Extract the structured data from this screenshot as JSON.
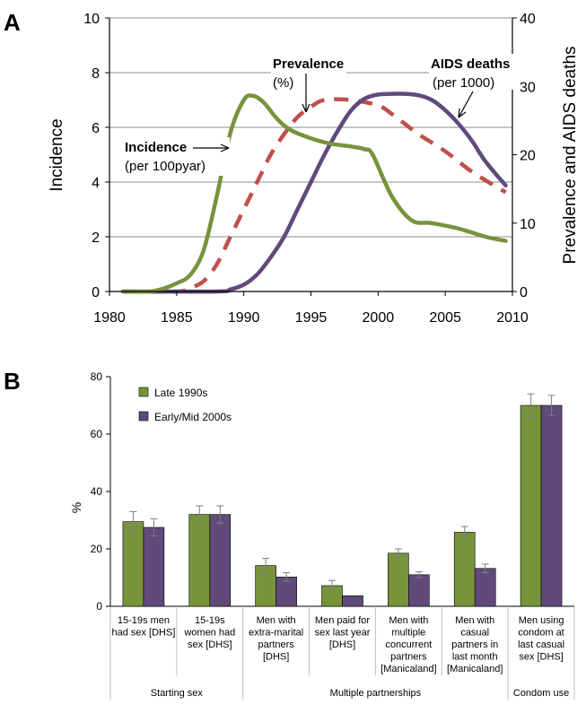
{
  "panels": {
    "a_label": "A",
    "b_label": "B"
  },
  "chart_data": [
    {
      "type": "line",
      "panel": "A",
      "xlim": [
        1980,
        2010
      ],
      "xticks": [
        "1980",
        "1985",
        "1990",
        "1995",
        "2000",
        "2005",
        "2010"
      ],
      "ylabel_left": "Incidence",
      "ylim_left": [
        0,
        10
      ],
      "yticks_left": [
        "0",
        "2",
        "4",
        "6",
        "8",
        "10"
      ],
      "ylabel_right": "Prevalence and AIDS deaths",
      "ylim_right": [
        0,
        40
      ],
      "yticks_right": [
        "0",
        "10",
        "20",
        "30",
        "40"
      ],
      "grid": true,
      "series": [
        {
          "name": "Incidence",
          "note": "(per 100pyar)",
          "axis": "left",
          "color": "#77933c",
          "style": "solid",
          "x": [
            1981,
            1983,
            1984,
            1985,
            1986,
            1987,
            1988,
            1989,
            1990,
            1990.7,
            1991.5,
            1992.5,
            1993.5,
            1995,
            1996.5,
            1998,
            1999,
            1999.6,
            2001,
            2002.5,
            2004,
            2006,
            2008,
            2009.5
          ],
          "y": [
            0,
            0,
            0.1,
            0.3,
            0.6,
            1.5,
            3.5,
            5.8,
            7.0,
            7.15,
            6.9,
            6.3,
            5.9,
            5.6,
            5.4,
            5.3,
            5.2,
            5.0,
            3.5,
            2.6,
            2.5,
            2.3,
            2.0,
            1.85
          ]
        },
        {
          "name": "Prevalence",
          "note": "(%)",
          "axis": "right",
          "color": "#c0504d",
          "style": "dashed",
          "x": [
            1981,
            1985,
            1986,
            1987,
            1988,
            1989,
            1990,
            1991,
            1992,
            1993,
            1994,
            1995,
            1996,
            1998,
            2000,
            2001,
            2002,
            2003,
            2005,
            2007,
            2009.5
          ],
          "y": [
            0,
            0,
            0.5,
            1.5,
            4,
            8,
            12,
            16,
            20,
            23,
            25.5,
            27,
            28,
            28,
            27.2,
            26,
            24.5,
            23,
            20.5,
            17.5,
            14.5
          ]
        },
        {
          "name": "AIDS deaths",
          "note": "(per 1000)",
          "axis": "right",
          "color": "#604a7b",
          "style": "solid",
          "x": [
            1981,
            1988,
            1989,
            1990,
            1991,
            1992,
            1993,
            1994,
            1995,
            1996,
            1997,
            1998,
            1999,
            2000,
            2001,
            2002,
            2003,
            2004,
            2005,
            2006,
            2007,
            2008,
            2009.5
          ],
          "y": [
            0,
            0,
            0.3,
            1,
            2.5,
            5,
            8,
            12,
            16,
            20,
            23.5,
            26.5,
            28.2,
            28.8,
            28.9,
            28.9,
            28.7,
            28,
            26.5,
            24.5,
            22,
            19,
            15.5
          ]
        }
      ]
    },
    {
      "type": "bar",
      "panel": "B",
      "ylabel": "%",
      "ylim": [
        0,
        80
      ],
      "yticks": [
        "0",
        "20",
        "40",
        "60",
        "80"
      ],
      "legend": "top-left",
      "categories": [
        "15-19s men had sex [DHS]",
        "15-19s women had sex [DHS]",
        "Men with extra-marital partners [DHS]",
        "Men paid for sex last year [DHS]",
        "Men with multiple concurrent partners [Manicaland]",
        "Men with casual partners in last month [Manicaland]",
        "Men using condom at last casual sex [DHS]"
      ],
      "category_lines": [
        [
          "15-19s men",
          "had sex [DHS]"
        ],
        [
          "15-19s",
          "women had",
          "sex [DHS]"
        ],
        [
          "Men with",
          "extra-marital",
          "partners",
          "[DHS]"
        ],
        [
          "Men paid for",
          "sex last year",
          "[DHS]"
        ],
        [
          "Men with",
          "multiple",
          "concurrent",
          "partners",
          "[Manicaland]"
        ],
        [
          "Men with",
          "casual",
          "partners in",
          "last month",
          "[Manicaland]"
        ],
        [
          "Men using",
          "condom at",
          "last casual",
          "sex [DHS]"
        ]
      ],
      "groups": [
        {
          "label": "Starting sex",
          "from": 0,
          "to": 1
        },
        {
          "label": "Multiple partnerships",
          "from": 2,
          "to": 5
        },
        {
          "label": "Condom use",
          "from": 6,
          "to": 6
        }
      ],
      "series": [
        {
          "name": "Late 1990s",
          "color": "#77933c",
          "values": [
            29.5,
            32,
            14.2,
            7.2,
            18.5,
            25.8,
            70
          ],
          "err": [
            3.5,
            3,
            2.5,
            1.8,
            1.5,
            2,
            4
          ]
        },
        {
          "name": "Early/Mid 2000s",
          "color": "#604a7b",
          "values": [
            27.5,
            32,
            10.2,
            3.7,
            11,
            13.2,
            70
          ],
          "err": [
            3,
            3,
            1.5,
            0,
            1,
            1.5,
            3.5
          ]
        }
      ]
    }
  ]
}
